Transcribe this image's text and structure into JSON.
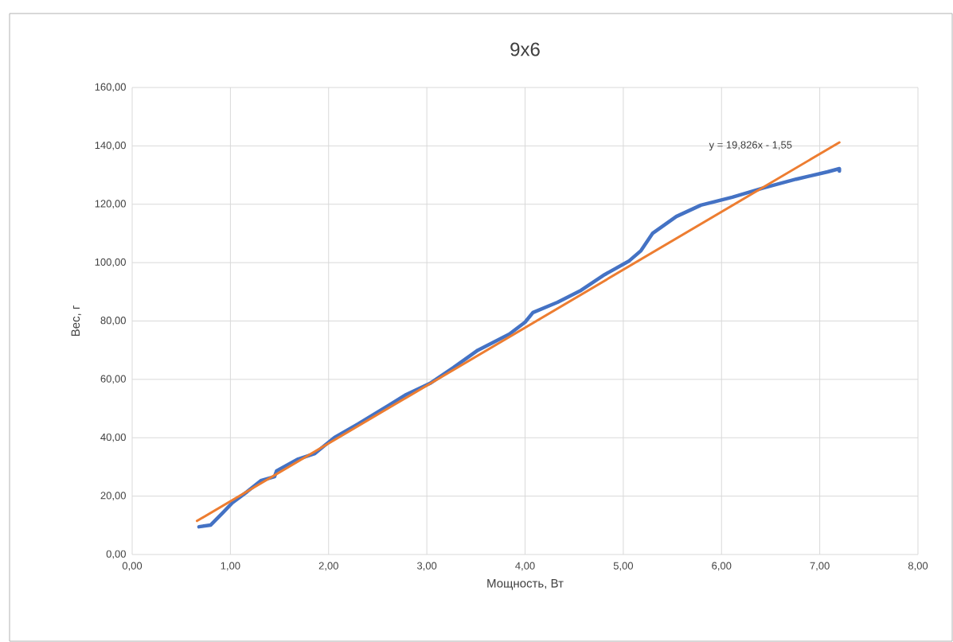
{
  "chart_data": {
    "type": "line",
    "title": "9x6",
    "xlabel": "Мощность, Вт",
    "ylabel": "Вес, г",
    "xlim": [
      0,
      8
    ],
    "ylim": [
      0,
      160
    ],
    "grid": true,
    "xticks": [
      {
        "value": 0,
        "label": "0,00"
      },
      {
        "value": 1,
        "label": "1,00"
      },
      {
        "value": 2,
        "label": "2,00"
      },
      {
        "value": 3,
        "label": "3,00"
      },
      {
        "value": 4,
        "label": "4,00"
      },
      {
        "value": 5,
        "label": "5,00"
      },
      {
        "value": 6,
        "label": "6,00"
      },
      {
        "value": 7,
        "label": "7,00"
      },
      {
        "value": 8,
        "label": "8,00"
      }
    ],
    "yticks": [
      {
        "value": 0,
        "label": "0,00"
      },
      {
        "value": 20,
        "label": "20,00"
      },
      {
        "value": 40,
        "label": "40,00"
      },
      {
        "value": 60,
        "label": "60,00"
      },
      {
        "value": 80,
        "label": "80,00"
      },
      {
        "value": 100,
        "label": "100,00"
      },
      {
        "value": 120,
        "label": "120,00"
      },
      {
        "value": 140,
        "label": "140,00"
      },
      {
        "value": 160,
        "label": "160,00"
      }
    ],
    "annotations": [
      "y = 19,826x - 1,55"
    ],
    "series": [
      {
        "color": "#4472c4",
        "x": [
          0.68,
          0.8,
          0.92,
          1.02,
          1.17,
          1.31,
          1.45,
          1.47,
          1.69,
          1.86,
          2.06,
          2.3,
          2.54,
          2.79,
          3.03,
          3.27,
          3.52,
          3.84,
          4.0,
          4.08,
          4.33,
          4.57,
          4.81,
          5.06,
          5.18,
          5.3,
          5.54,
          5.79,
          6.11,
          6.43,
          6.76,
          7.08,
          7.2,
          7.2
        ],
        "values": [
          9.5,
          10.1,
          14.2,
          17.7,
          21.5,
          25.3,
          26.7,
          28.6,
          32.7,
          34.6,
          40.1,
          44.7,
          49.6,
          54.8,
          58.6,
          64.0,
          70.0,
          75.5,
          79.6,
          82.9,
          86.4,
          90.5,
          95.9,
          100.6,
          104.1,
          110.1,
          115.8,
          119.7,
          122.4,
          125.6,
          128.6,
          131.1,
          132.2,
          131.4
        ]
      },
      {
        "color": "#ed7d31",
        "x": [
          0.66,
          7.2
        ],
        "values": [
          11.5,
          141.2
        ]
      }
    ]
  }
}
